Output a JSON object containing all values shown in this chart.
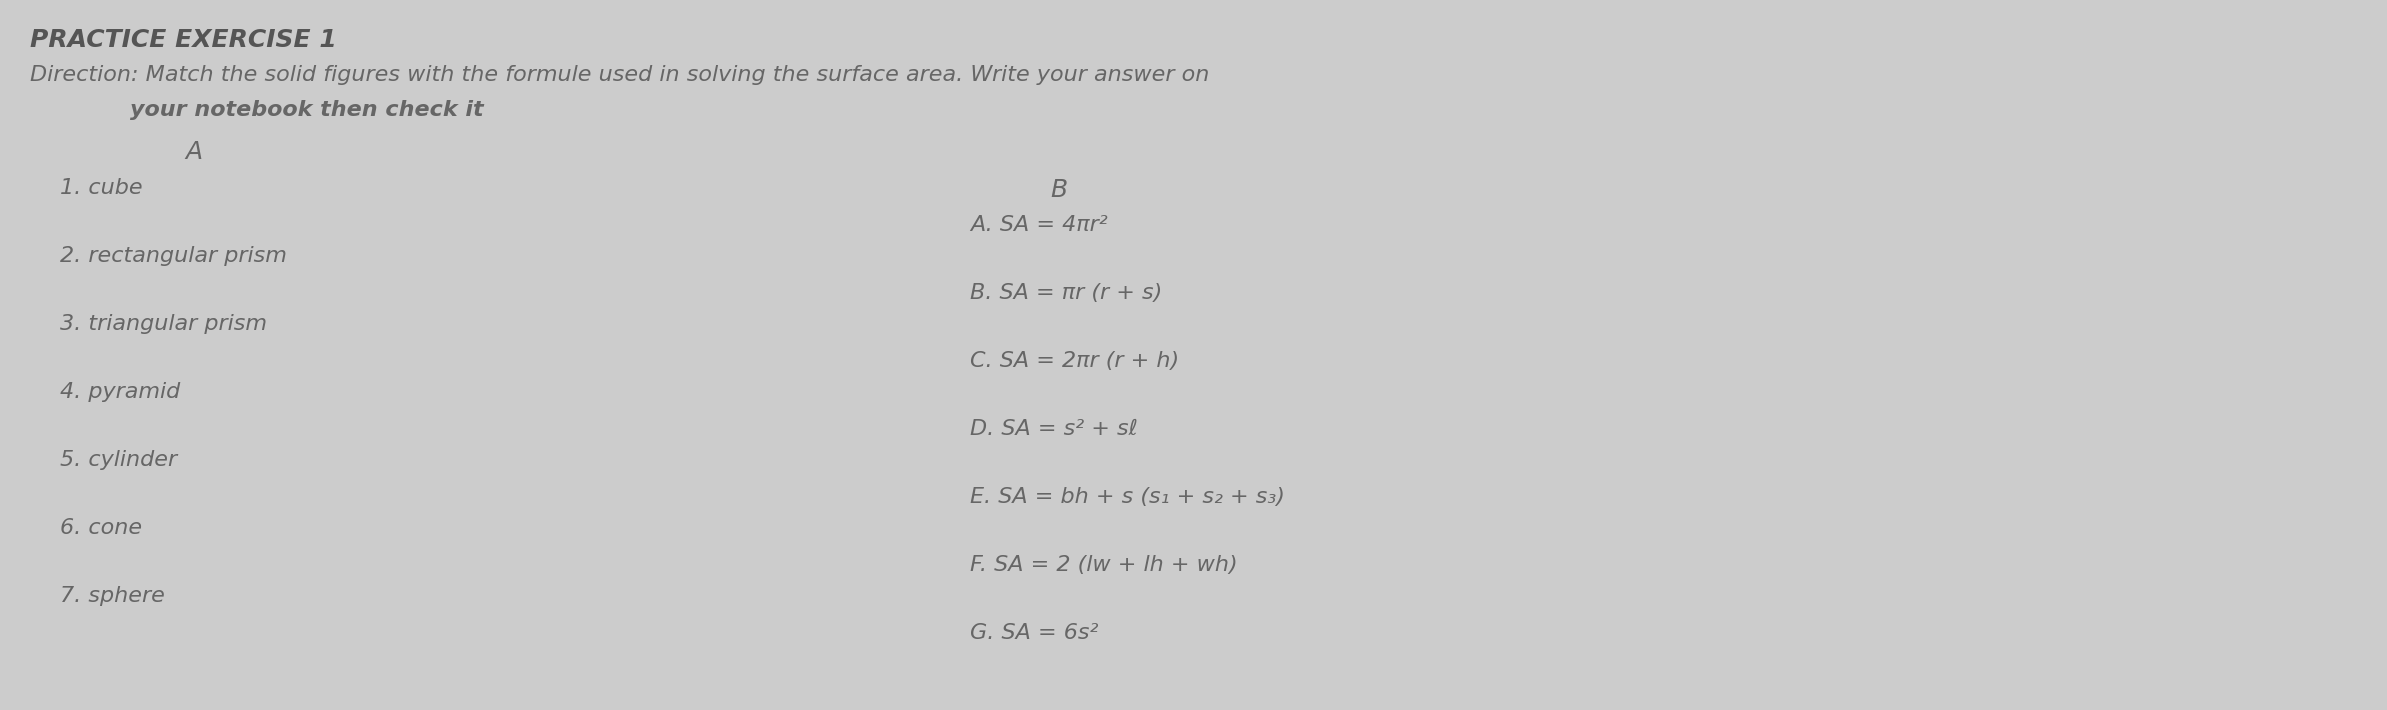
{
  "background_color": "#cccccc",
  "title": "PRACTICE EXERCISE 1",
  "direction_line1": "Direction: Match the solid figures with the formule used in solving the surface area. Write your answer on",
  "direction_line2": "your notebook then check it",
  "col_a_header": "A",
  "col_b_header": "B",
  "col_a_items": [
    "1. cube",
    "2. rectangular prism",
    "3. triangular prism",
    "4. pyramid",
    "5. cylinder",
    "6. cone",
    "7. sphere"
  ],
  "col_b_items": [
    "A. SA = 4πr²",
    "B. SA = πr (r + s)",
    "C. SA = 2πr (r + h)",
    "D. SA = s² + sℓ",
    "E. SA = bh + s (s₁ + s₂ + s₃)",
    "F. SA = 2 (lw + lh + wh)",
    "G. SA = 6s²"
  ],
  "title_fontsize": 18,
  "direction_fontsize": 16,
  "header_fontsize": 18,
  "item_fontsize": 16,
  "text_color": "#666666",
  "title_color": "#555555"
}
